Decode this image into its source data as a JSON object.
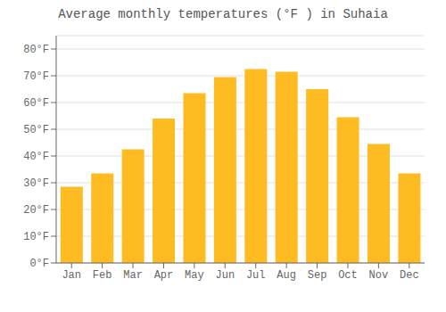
{
  "chart_data": {
    "type": "bar",
    "title": "Average monthly temperatures (°F ) in Suhaia",
    "categories": [
      "Jan",
      "Feb",
      "Mar",
      "Apr",
      "May",
      "Jun",
      "Jul",
      "Aug",
      "Sep",
      "Oct",
      "Nov",
      "Dec"
    ],
    "values": [
      28.5,
      33.5,
      42.5,
      54.0,
      63.5,
      69.5,
      72.5,
      71.5,
      65.0,
      54.5,
      44.5,
      33.5
    ],
    "color": "#FFBB22",
    "ylim": [
      0,
      85
    ],
    "yticks": [
      {
        "value": 0,
        "label": "0°F"
      },
      {
        "value": 10,
        "label": "10°F"
      },
      {
        "value": 20,
        "label": "20°F"
      },
      {
        "value": 30,
        "label": "30°F"
      },
      {
        "value": 40,
        "label": "40°F"
      },
      {
        "value": 50,
        "label": "50°F"
      },
      {
        "value": 60,
        "label": "60°F"
      },
      {
        "value": 70,
        "label": "70°F"
      },
      {
        "value": 80,
        "label": "80°F"
      }
    ],
    "grid": true
  }
}
